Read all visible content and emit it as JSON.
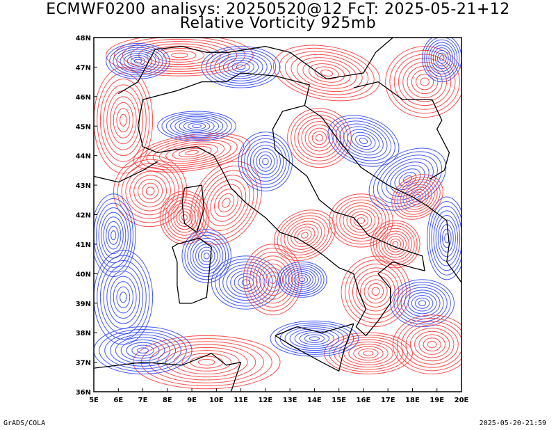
{
  "title": {
    "line1": "ECMWF0200 analisys: 20250520@12 FcT: 2025-05-21+12",
    "line2": "Relative Vorticity 925mb"
  },
  "map": {
    "lon_labels": [
      "5E",
      "6E",
      "7E",
      "8E",
      "9E",
      "10E",
      "11E",
      "12E",
      "13E",
      "14E",
      "15E",
      "16E",
      "17E",
      "18E",
      "19E",
      "20E"
    ],
    "lat_labels": [
      "48N",
      "47N",
      "46N",
      "45N",
      "44N",
      "43N",
      "42N",
      "41N",
      "40N",
      "39N",
      "38N",
      "37N",
      "36N"
    ],
    "lon_range": [
      5,
      20
    ],
    "lat_range": [
      36,
      48
    ],
    "positive_color": "#ff3a3a",
    "negative_color": "#2f46ff",
    "land_border_color": "#000000"
  },
  "footer": {
    "left": "GrADS/COLA",
    "right": "2025-05-20-21:59"
  }
}
